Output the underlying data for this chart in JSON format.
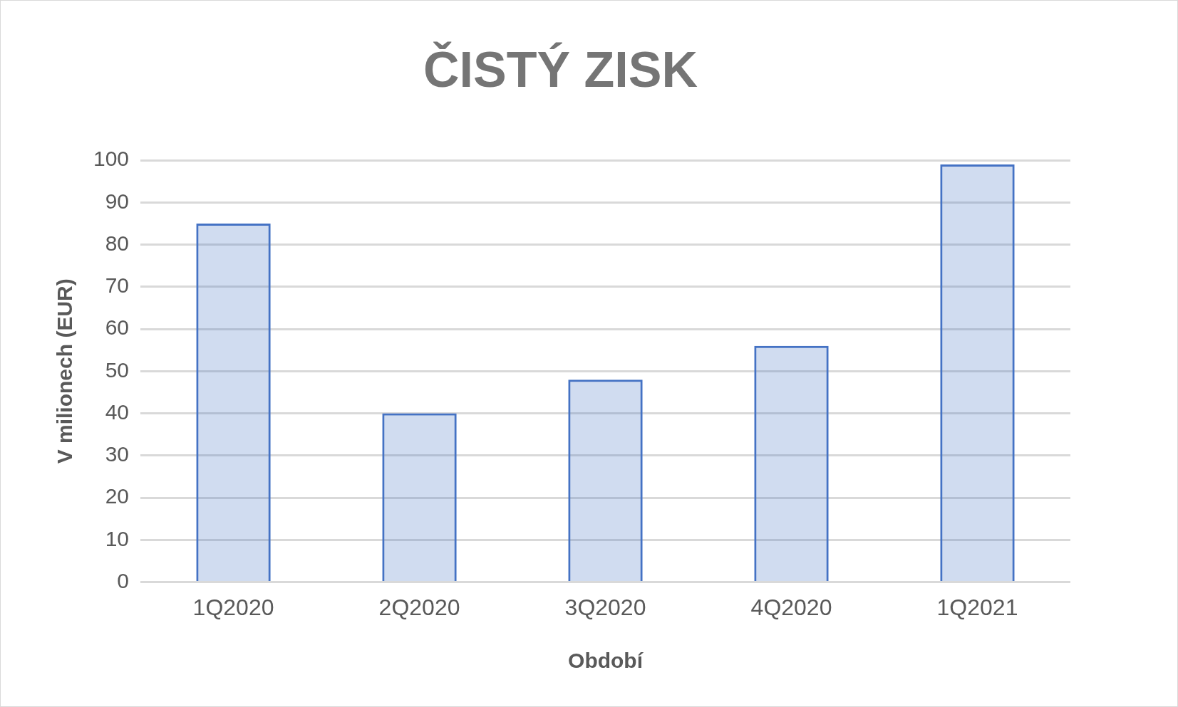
{
  "chart_data": {
    "type": "bar",
    "title": "ČISTÝ ZISK",
    "xlabel": "Období",
    "ylabel": "V milionech (EUR)",
    "categories": [
      "1Q2020",
      "2Q2020",
      "3Q2020",
      "4Q2020",
      "1Q2021"
    ],
    "values": [
      85,
      40,
      48,
      56,
      99
    ],
    "color": "#4472c4",
    "ylim": [
      0,
      100
    ],
    "yticks": [
      0,
      10,
      20,
      30,
      40,
      50,
      60,
      70,
      80,
      90,
      100
    ],
    "grid": "y",
    "legend": false
  }
}
